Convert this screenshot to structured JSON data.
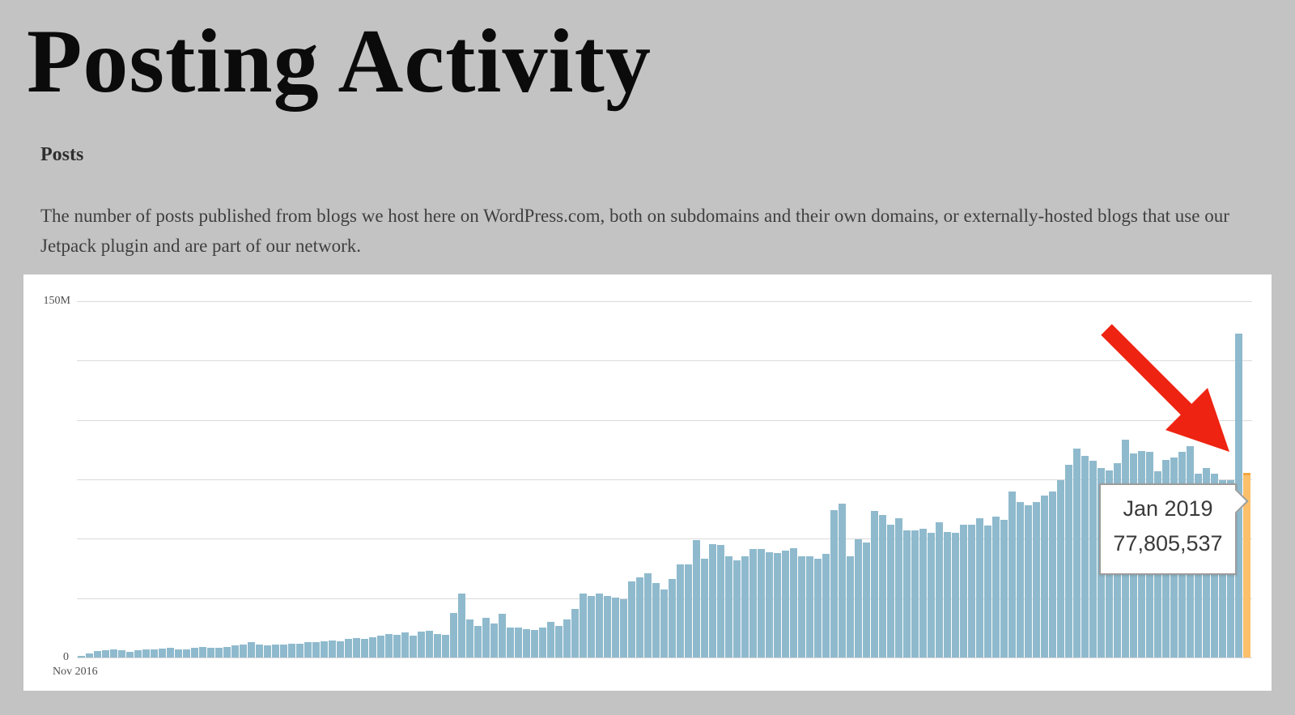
{
  "header": {
    "title": "Posting Activity"
  },
  "section": {
    "heading": "Posts",
    "description": "The number of posts published from blogs we host here on WordPress.com, both on subdomains and their own domains, or externally-hosted blogs that use our Jetpack plugin and are part of our network."
  },
  "tooltip": {
    "label": "Jan 2019",
    "value": "77,805,537"
  },
  "chart_data": {
    "type": "bar",
    "title": "Posting Activity — monthly/weekly posts published on WordPress.com network",
    "xlabel": "",
    "ylabel": "",
    "y_axis": {
      "min": 0,
      "max": 150000000,
      "min_label": "0",
      "max_label": "150M",
      "gridline_step_millions": 25
    },
    "x_axis": {
      "start_label": "Nov 2016",
      "highlighted_label": "Jan 2019"
    },
    "legend": false,
    "grid": true,
    "unit": "millions of posts",
    "values_millions": [
      0.8,
      1.7,
      2.7,
      2.9,
      3.4,
      2.9,
      2.3,
      2.9,
      3.4,
      3.4,
      3.9,
      4.1,
      3.4,
      3.4,
      4.1,
      4.5,
      4.1,
      4.1,
      4.5,
      5.0,
      5.5,
      6.4,
      5.5,
      5.0,
      5.5,
      5.5,
      5.9,
      5.9,
      6.4,
      6.4,
      6.8,
      7.3,
      6.8,
      7.7,
      8.2,
      7.7,
      8.6,
      9.1,
      10.0,
      9.5,
      10.5,
      9.1,
      10.9,
      11.4,
      10.0,
      9.5,
      18.6,
      26.8,
      16.0,
      13.2,
      16.6,
      14.3,
      18.3,
      12.6,
      12.6,
      12.0,
      11.5,
      12.6,
      14.9,
      13.2,
      16.0,
      20.6,
      26.8,
      25.9,
      26.8,
      25.9,
      25.1,
      24.5,
      31.9,
      33.6,
      35.4,
      31.4,
      28.5,
      33.1,
      39.3,
      39.3,
      49.5,
      41.6,
      47.8,
      47.3,
      42.7,
      41.0,
      42.5,
      45.6,
      45.6,
      44.4,
      43.9,
      45.0,
      46.1,
      42.6,
      42.6,
      41.6,
      43.6,
      62.0,
      64.8,
      42.6,
      49.8,
      48.4,
      61.7,
      60.0,
      55.9,
      58.6,
      53.5,
      53.5,
      54.2,
      52.5,
      56.9,
      52.8,
      52.5,
      55.9,
      56.0,
      58.6,
      55.5,
      59.3,
      58.0,
      69.9,
      65.5,
      64.0,
      65.5,
      68.2,
      70.0,
      74.5,
      81.0,
      88.0,
      85.0,
      82.8,
      79.7,
      78.8,
      81.8,
      91.6,
      85.9,
      87.0,
      86.5,
      78.4,
      83.2,
      84.2,
      86.5,
      89.0,
      77.4,
      79.8,
      77.4,
      74.7,
      74.5,
      136.4,
      77.8
    ],
    "highlight": {
      "index": 144,
      "label": "Jan 2019",
      "value": 77805537
    },
    "annotation": "large red arrow pointing at the tall spike bar beside the highlighted Jan 2019 bar",
    "colors": {
      "bar": "#8fbacd",
      "highlight_bar": "#fcc06a",
      "highlight_cap": "#f3a63f",
      "gridline": "#dadada",
      "arrow": "#ee2311",
      "card_background": "#ffffff",
      "page_background": "#c3c3c3"
    }
  }
}
